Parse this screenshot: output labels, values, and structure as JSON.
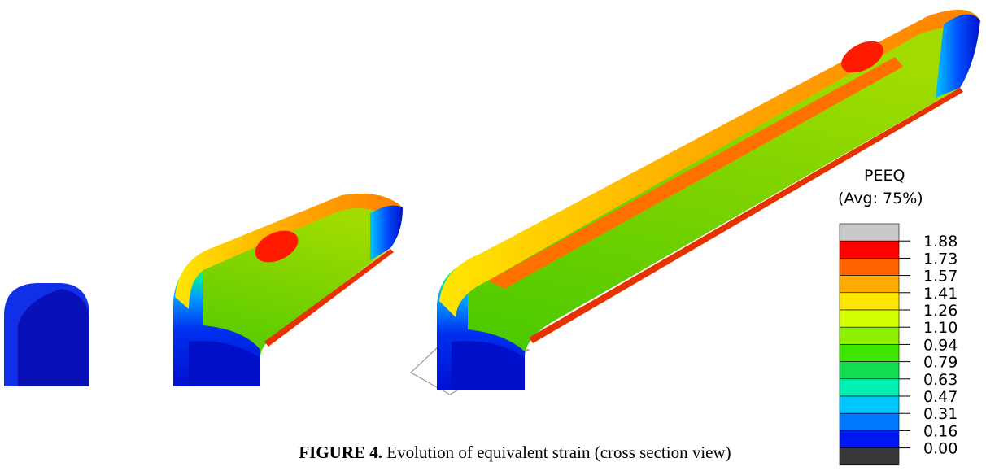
{
  "figure": {
    "legend": {
      "title": "PEEQ",
      "subtitle": "(Avg: 75%)",
      "labels": [
        "1.88",
        "1.73",
        "1.57",
        "1.41",
        "1.26",
        "1.10",
        "0.94",
        "0.79",
        "0.63",
        "0.47",
        "0.31",
        "0.16",
        "0.00"
      ],
      "colors": [
        "#c8c8c8",
        "#ff0000",
        "#ff6400",
        "#ffaa00",
        "#ffe600",
        "#d2ff00",
        "#8cf000",
        "#3ce600",
        "#14dc50",
        "#00f0b4",
        "#00c8ff",
        "#0078ff",
        "#0018f0",
        "#383838"
      ]
    },
    "caption": {
      "label": "FIGURE 4.",
      "text": "Evolution of equivalent strain (cross section view)"
    }
  }
}
